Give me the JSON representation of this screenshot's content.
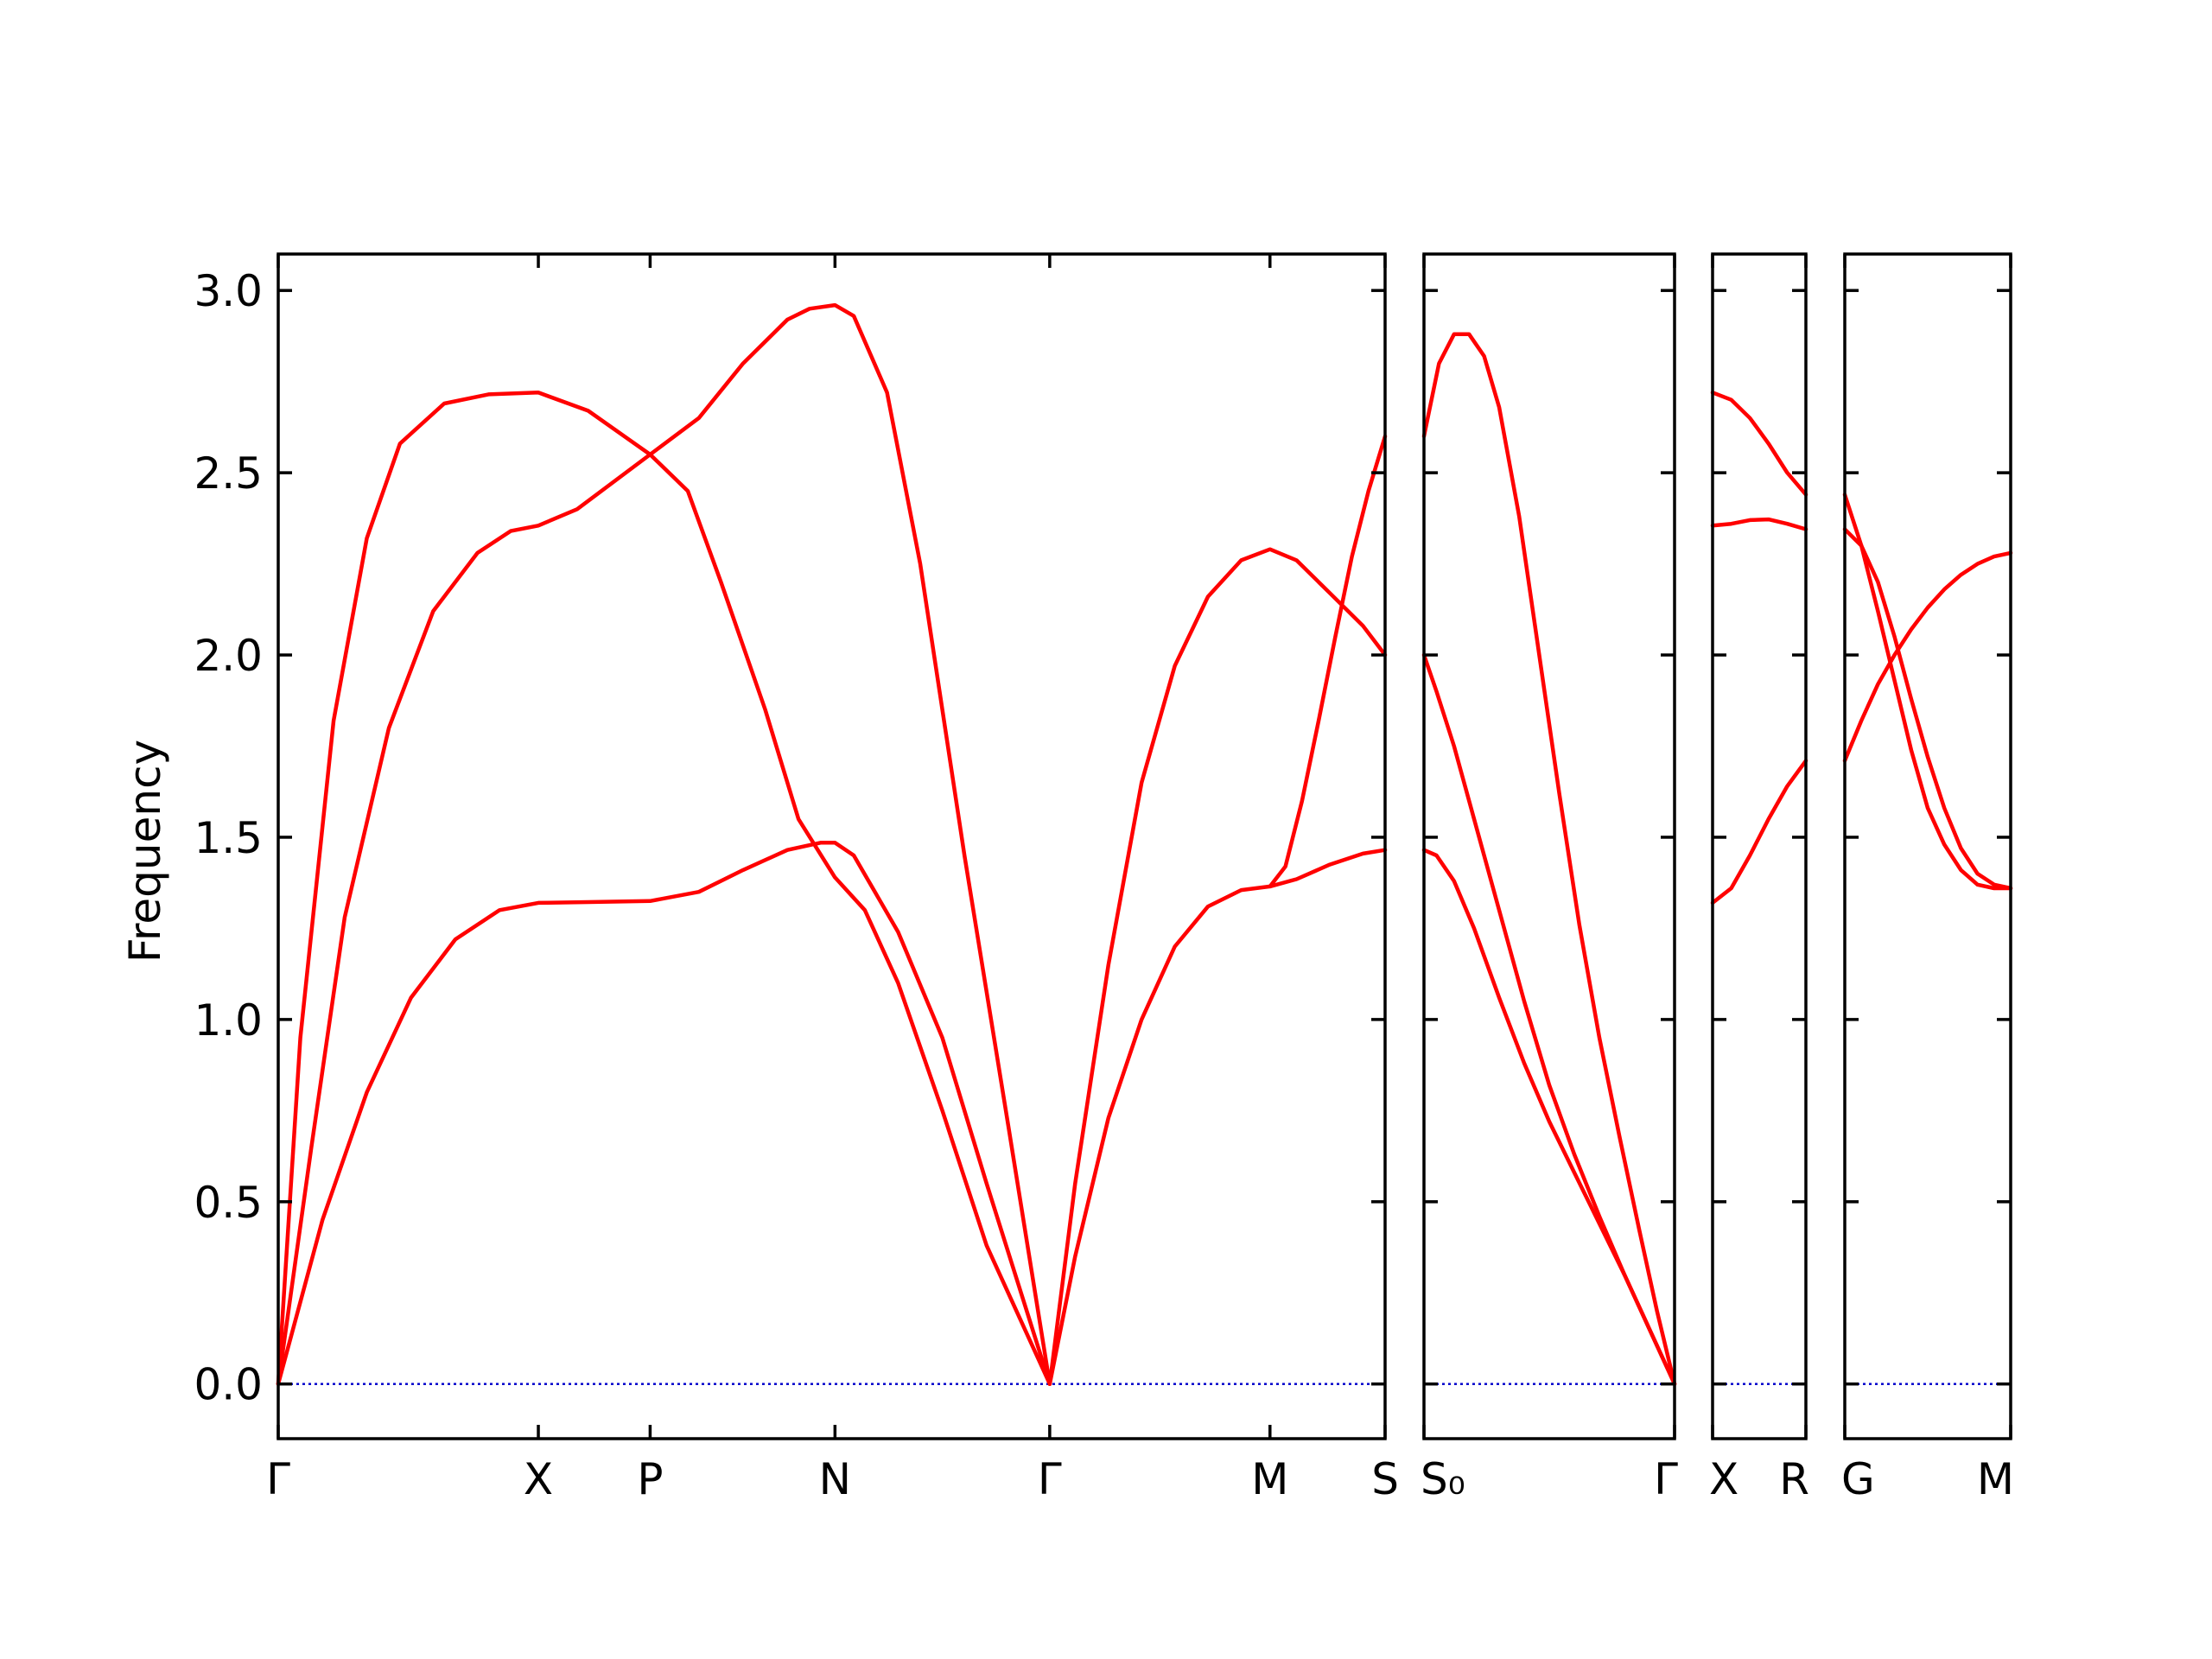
{
  "chart_data": {
    "type": "line",
    "ylabel": "Frequency",
    "ylim": [
      -0.15,
      3.1
    ],
    "yticks": [
      "0.0",
      "0.5",
      "1.0",
      "1.5",
      "2.0",
      "2.5",
      "3.0"
    ],
    "ytick_values": [
      0.0,
      0.5,
      1.0,
      1.5,
      2.0,
      2.5,
      3.0
    ],
    "line_color": "#ff0000",
    "zero_line_color": "#0000cc",
    "panels": [
      {
        "ticks": [
          {
            "label": "Γ",
            "x": 0.0
          },
          {
            "label": "X",
            "x": 0.235
          },
          {
            "label": "P",
            "x": 0.336
          },
          {
            "label": "N",
            "x": 0.503
          },
          {
            "label": "Γ",
            "x": 0.697
          },
          {
            "label": "M",
            "x": 0.896
          },
          {
            "label": "S",
            "x": 1.0
          }
        ],
        "series": [
          {
            "x": [
              0,
              0.02,
              0.05,
              0.08,
              0.11,
              0.15,
              0.19,
              0.235,
              0.28,
              0.336,
              0.37,
              0.4,
              0.44,
              0.47,
              0.503,
              0.53,
              0.56,
              0.6,
              0.64,
              0.697
            ],
            "y": [
              0,
              0.95,
              1.82,
              2.32,
              2.58,
              2.69,
              2.715,
              2.72,
              2.67,
              2.55,
              2.45,
              2.2,
              1.85,
              1.55,
              1.39,
              1.3,
              1.1,
              0.75,
              0.38,
              0
            ]
          },
          {
            "x": [
              0,
              0.03,
              0.06,
              0.1,
              0.14,
              0.18,
              0.21,
              0.235,
              0.27,
              0.336,
              0.38,
              0.42,
              0.46,
              0.48,
              0.503,
              0.52,
              0.55,
              0.58,
              0.62,
              0.66,
              0.697
            ],
            "y": [
              0,
              0.65,
              1.28,
              1.8,
              2.12,
              2.28,
              2.34,
              2.355,
              2.4,
              2.55,
              2.65,
              2.8,
              2.92,
              2.95,
              2.96,
              2.93,
              2.72,
              2.25,
              1.45,
              0.7,
              0
            ]
          },
          {
            "x": [
              0,
              0.04,
              0.08,
              0.12,
              0.16,
              0.2,
              0.235,
              0.28,
              0.336,
              0.38,
              0.42,
              0.46,
              0.49,
              0.503,
              0.52,
              0.56,
              0.6,
              0.64,
              0.697
            ],
            "y": [
              0,
              0.45,
              0.8,
              1.06,
              1.22,
              1.3,
              1.32,
              1.322,
              1.325,
              1.35,
              1.41,
              1.465,
              1.485,
              1.485,
              1.45,
              1.24,
              0.95,
              0.55,
              0
            ]
          },
          {
            "x": [
              0.697,
              0.72,
              0.75,
              0.78,
              0.81,
              0.84,
              0.87,
              0.896,
              0.92,
              0.95,
              0.98,
              1.0
            ],
            "y": [
              0,
              0.55,
              1.15,
              1.65,
              1.97,
              2.16,
              2.26,
              2.29,
              2.26,
              2.17,
              2.08,
              2.0
            ]
          },
          {
            "x": [
              0.697,
              0.72,
              0.75,
              0.78,
              0.81,
              0.84,
              0.87,
              0.896,
              0.92,
              0.95,
              0.98,
              1.0
            ],
            "y": [
              0,
              0.35,
              0.73,
              1.0,
              1.2,
              1.31,
              1.355,
              1.365,
              1.385,
              1.425,
              1.455,
              1.465
            ]
          },
          {
            "x": [
              0.896,
              0.91,
              0.925,
              0.94,
              0.955,
              0.97,
              0.985,
              1.0
            ],
            "y": [
              1.365,
              1.42,
              1.6,
              1.82,
              2.05,
              2.27,
              2.45,
              2.6
            ]
          }
        ]
      },
      {
        "ticks": [
          {
            "label": "S₀",
            "x": 0.0
          },
          {
            "label": "Γ",
            "x": 1.0
          }
        ],
        "series": [
          {
            "x": [
              0,
              0.06,
              0.12,
              0.18,
              0.24,
              0.3,
              0.38,
              0.46,
              0.54,
              0.62,
              0.7,
              0.78,
              0.86,
              0.93,
              1.0
            ],
            "y": [
              2.6,
              2.8,
              2.88,
              2.88,
              2.82,
              2.68,
              2.38,
              2.0,
              1.62,
              1.26,
              0.95,
              0.68,
              0.42,
              0.2,
              0
            ]
          },
          {
            "x": [
              0,
              0.05,
              0.12,
              0.2,
              0.3,
              0.4,
              0.5,
              0.6,
              0.7,
              0.8,
              0.9,
              1.0
            ],
            "y": [
              2.0,
              1.9,
              1.75,
              1.55,
              1.3,
              1.05,
              0.82,
              0.63,
              0.46,
              0.3,
              0.15,
              0
            ]
          },
          {
            "x": [
              0,
              0.05,
              0.12,
              0.2,
              0.3,
              0.4,
              0.5,
              0.6,
              0.7,
              0.8,
              0.9,
              1.0
            ],
            "y": [
              1.465,
              1.45,
              1.38,
              1.25,
              1.06,
              0.88,
              0.72,
              0.58,
              0.44,
              0.3,
              0.15,
              0
            ]
          }
        ]
      },
      {
        "ticks": [
          {
            "label": "X",
            "x": 0.0
          },
          {
            "label": "R",
            "x": 1.0
          }
        ],
        "series": [
          {
            "x": [
              0,
              0.2,
              0.4,
              0.6,
              0.8,
              1.0
            ],
            "y": [
              2.72,
              2.7,
              2.65,
              2.58,
              2.5,
              2.44
            ]
          },
          {
            "x": [
              0,
              0.2,
              0.4,
              0.6,
              0.8,
              1.0
            ],
            "y": [
              2.355,
              2.36,
              2.37,
              2.372,
              2.36,
              2.345
            ]
          },
          {
            "x": [
              0,
              0.2,
              0.4,
              0.6,
              0.8,
              1.0
            ],
            "y": [
              1.32,
              1.36,
              1.45,
              1.55,
              1.64,
              1.71
            ]
          }
        ]
      },
      {
        "ticks": [
          {
            "label": "G",
            "x": 0.0
          },
          {
            "label": "M",
            "x": 1.0
          }
        ],
        "series": [
          {
            "x": [
              0,
              0.1,
              0.2,
              0.3,
              0.4,
              0.5,
              0.6,
              0.7,
              0.8,
              0.9,
              1.0
            ],
            "y": [
              2.44,
              2.3,
              2.12,
              1.93,
              1.74,
              1.58,
              1.48,
              1.41,
              1.37,
              1.36,
              1.36
            ]
          },
          {
            "x": [
              0,
              0.1,
              0.2,
              0.3,
              0.4,
              0.5,
              0.6,
              0.7,
              0.8,
              0.9,
              1.0
            ],
            "y": [
              2.345,
              2.3,
              2.2,
              2.05,
              1.88,
              1.72,
              1.58,
              1.47,
              1.4,
              1.37,
              1.36
            ]
          },
          {
            "x": [
              0,
              0.1,
              0.2,
              0.3,
              0.4,
              0.5,
              0.6,
              0.7,
              0.8,
              0.9,
              1.0
            ],
            "y": [
              1.71,
              1.82,
              1.92,
              2.0,
              2.07,
              2.13,
              2.18,
              2.22,
              2.25,
              2.27,
              2.28
            ]
          }
        ]
      }
    ]
  }
}
